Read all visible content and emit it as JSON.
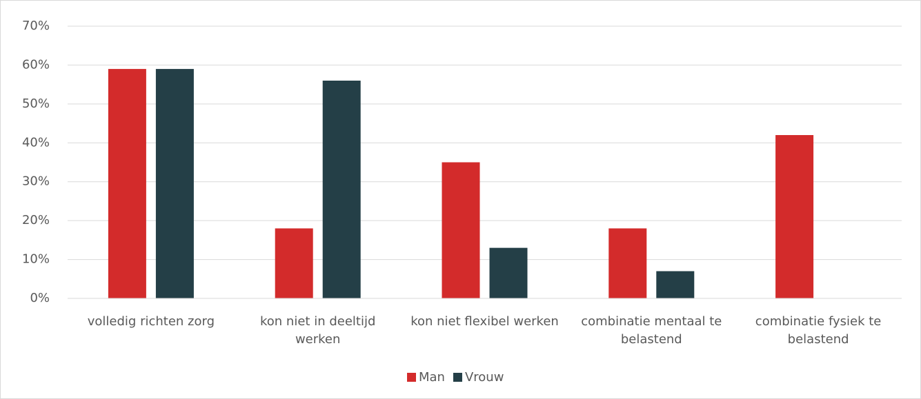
{
  "chart_data": {
    "type": "bar",
    "categories": [
      "volledig richten zorg",
      "kon niet in deeltijd werken",
      "kon niet flexibel werken",
      "combinatie mentaal te belastend",
      "combinatie fysiek te belastend"
    ],
    "series": [
      {
        "name": "Man",
        "color": "#d32b2b",
        "values": [
          59,
          18,
          35,
          18,
          42
        ]
      },
      {
        "name": "Vrouw",
        "color": "#243f47",
        "values": [
          59,
          56,
          13,
          7,
          0
        ]
      }
    ],
    "ylim": [
      0,
      70
    ],
    "yticks": [
      {
        "value": 0,
        "label": "0%"
      },
      {
        "value": 10,
        "label": "10%"
      },
      {
        "value": 20,
        "label": "20%"
      },
      {
        "value": 30,
        "label": "30%"
      },
      {
        "value": 40,
        "label": "40%"
      },
      {
        "value": 50,
        "label": "50%"
      },
      {
        "value": 60,
        "label": "60%"
      },
      {
        "value": 70,
        "label": "70%"
      }
    ],
    "grid": true,
    "legend": "bottom"
  }
}
